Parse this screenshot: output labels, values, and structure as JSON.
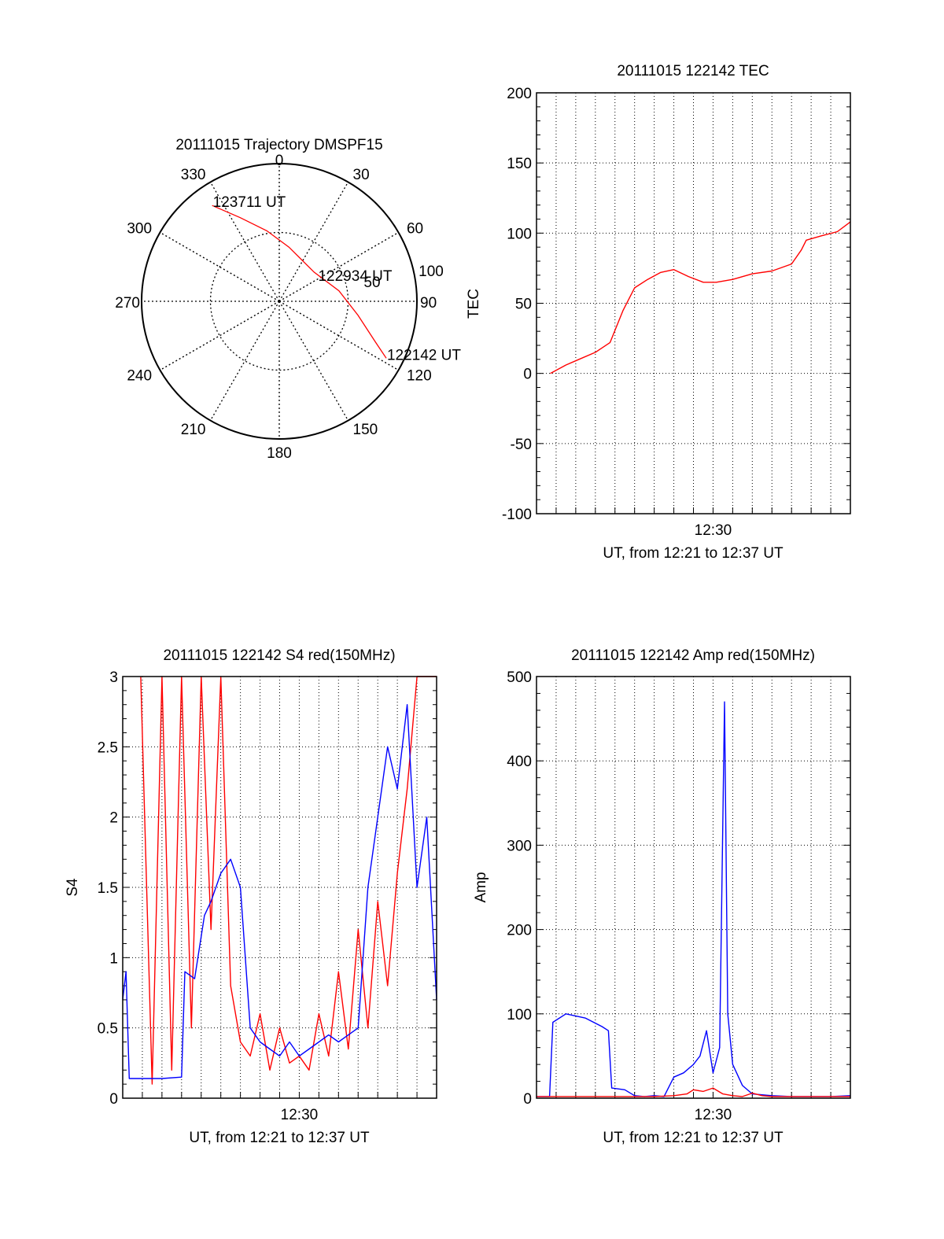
{
  "colors": {
    "red": "#ff0000",
    "blue": "#0000ff",
    "axis": "#000000",
    "grid": "#000000"
  },
  "chart_data": [
    {
      "type": "polar",
      "title": "20111015 Trajectory DMSPF15",
      "angle_labels": [
        "0",
        "30",
        "60",
        "90",
        "120",
        "150",
        "180",
        "210",
        "240",
        "270",
        "300",
        "330"
      ],
      "radius_labels": [
        "50",
        "100"
      ],
      "rlim": [
        0,
        100
      ],
      "grid": true,
      "series": [
        {
          "color": "#ff0000",
          "points": [
            [
              -35,
              85
            ],
            [
              -25,
              67
            ],
            [
              -10,
              52
            ],
            [
              10,
              40
            ],
            [
              50,
              33
            ],
            [
              80,
              44
            ],
            [
              100,
              58
            ],
            [
              113,
              76
            ],
            [
              118,
              88
            ]
          ]
        }
      ],
      "annotations": [
        {
          "text": "123711 UT",
          "az": -35,
          "r": 85
        },
        {
          "text": "122934 UT",
          "az": 60,
          "r": 32
        },
        {
          "text": "122142 UT",
          "az": 118,
          "r": 88
        }
      ]
    },
    {
      "type": "line",
      "title": "20111015 122142 TEC",
      "xlabel": "UT, from 12:21 to 12:37 UT",
      "ylabel": "TEC",
      "xlim": [
        "12:21:00",
        "12:37:00"
      ],
      "ylim": [
        -100,
        200
      ],
      "yticks": [
        -100,
        -50,
        0,
        50,
        100,
        150,
        200
      ],
      "xtick_labels": [
        {
          "t": "12:30:00",
          "label": "12:30"
        }
      ],
      "grid": true,
      "series": [
        {
          "color": "#ff0000",
          "x": [
            "12:21:42",
            "12:22:30",
            "12:23:10",
            "12:24:00",
            "12:24:45",
            "12:25:25",
            "12:26:00",
            "12:26:40",
            "12:27:20",
            "12:28:00",
            "12:28:45",
            "12:29:30",
            "12:30:10",
            "12:31:00",
            "12:32:00",
            "12:33:00",
            "12:34:00",
            "12:34:30",
            "12:34:45",
            "12:35:30",
            "12:36:20",
            "12:37:00"
          ],
          "y": [
            0,
            6,
            10,
            15,
            22,
            45,
            61,
            67,
            72,
            74,
            69,
            65,
            65,
            67,
            71,
            73,
            78,
            88,
            95,
            98,
            101,
            108
          ]
        }
      ]
    },
    {
      "type": "line",
      "title": "20111015 122142 S4 red(150MHz)",
      "xlabel": "UT, from 12:21 to 12:37 UT",
      "ylabel": "S4",
      "xlim": [
        "12:21:00",
        "12:37:00"
      ],
      "ylim": [
        0,
        3
      ],
      "yticks": [
        0,
        0.5,
        1,
        1.5,
        2,
        2.5,
        3
      ],
      "xtick_labels": [
        {
          "t": "12:30:00",
          "label": "12:30"
        }
      ],
      "grid": true,
      "series": [
        {
          "color": "#ff0000",
          "x": [
            "12:21:55",
            "12:22:30",
            "12:23:00",
            "12:23:30",
            "12:24:00",
            "12:24:30",
            "12:25:00",
            "12:25:30",
            "12:26:00",
            "12:26:30",
            "12:27:00",
            "12:27:30",
            "12:28:00",
            "12:28:30",
            "12:29:00",
            "12:29:30",
            "12:30:00",
            "12:30:30",
            "12:31:00",
            "12:31:30",
            "12:32:00",
            "12:32:30",
            "12:33:00",
            "12:33:30",
            "12:34:00",
            "12:34:30",
            "12:35:00",
            "12:35:30",
            "12:36:00",
            "12:36:30",
            "12:37:00"
          ],
          "y": [
            3,
            0.1,
            3,
            0.2,
            3,
            0.5,
            3,
            1.2,
            3,
            0.8,
            0.4,
            0.3,
            0.6,
            0.2,
            0.5,
            0.25,
            0.3,
            0.2,
            0.6,
            0.3,
            0.9,
            0.35,
            1.2,
            0.5,
            1.4,
            0.8,
            1.6,
            2.2,
            3,
            3,
            3
          ]
        },
        {
          "color": "#0000ff",
          "x": [
            "12:21:00",
            "12:21:10",
            "12:21:20",
            "12:22:00",
            "12:23:00",
            "12:24:00",
            "12:24:10",
            "12:24:40",
            "12:25:10",
            "12:25:30",
            "12:26:00",
            "12:26:30",
            "12:27:00",
            "12:27:30",
            "12:28:00",
            "12:28:30",
            "12:29:00",
            "12:29:30",
            "12:30:00",
            "12:30:30",
            "12:31:00",
            "12:31:30",
            "12:32:00",
            "12:32:30",
            "12:33:00",
            "12:33:30",
            "12:34:00",
            "12:34:30",
            "12:35:00",
            "12:35:30",
            "12:36:00",
            "12:36:30",
            "12:37:00"
          ],
          "y": [
            0.7,
            0.9,
            0.14,
            0.14,
            0.14,
            0.15,
            0.9,
            0.85,
            1.3,
            1.4,
            1.6,
            1.7,
            1.5,
            0.5,
            0.4,
            0.35,
            0.3,
            0.4,
            0.3,
            0.35,
            0.4,
            0.45,
            0.4,
            0.45,
            0.5,
            1.5,
            2.0,
            2.5,
            2.2,
            2.8,
            1.5,
            2.0,
            0.7
          ]
        }
      ]
    },
    {
      "type": "line",
      "title": "20111015 122142 Amp red(150MHz)",
      "xlabel": "UT, from 12:21 to 12:37 UT",
      "ylabel": "Amp",
      "xlim": [
        "12:21:00",
        "12:37:00"
      ],
      "ylim": [
        0,
        500
      ],
      "yticks": [
        0,
        100,
        200,
        300,
        400,
        500
      ],
      "xtick_labels": [
        {
          "t": "12:30:00",
          "label": "12:30"
        }
      ],
      "grid": true,
      "series": [
        {
          "color": "#0000ff",
          "x": [
            "12:21:00",
            "12:21:40",
            "12:21:50",
            "12:22:30",
            "12:23:30",
            "12:24:20",
            "12:24:40",
            "12:24:50",
            "12:25:30",
            "12:26:00",
            "12:26:30",
            "12:27:00",
            "12:27:30",
            "12:28:00",
            "12:28:30",
            "12:29:00",
            "12:29:20",
            "12:29:40",
            "12:30:00",
            "12:30:20",
            "12:30:35",
            "12:30:45",
            "12:31:00",
            "12:31:30",
            "12:32:00",
            "12:33:00",
            "12:34:00",
            "12:35:00",
            "12:36:00",
            "12:37:00"
          ],
          "y": [
            2,
            2,
            90,
            100,
            95,
            85,
            80,
            12,
            10,
            3,
            2,
            3,
            2,
            25,
            30,
            40,
            50,
            80,
            30,
            60,
            470,
            100,
            40,
            15,
            5,
            3,
            2,
            2,
            2,
            3
          ]
        },
        {
          "color": "#ff0000",
          "x": [
            "12:21:00",
            "12:24:40",
            "12:27:00",
            "12:28:00",
            "12:28:40",
            "12:29:00",
            "12:29:30",
            "12:30:00",
            "12:30:30",
            "12:31:00",
            "12:31:30",
            "12:32:00",
            "12:32:30",
            "12:33:00",
            "12:37:00"
          ],
          "y": [
            2,
            2,
            2,
            3,
            5,
            10,
            8,
            12,
            5,
            3,
            2,
            6,
            3,
            2,
            2
          ]
        }
      ]
    }
  ]
}
